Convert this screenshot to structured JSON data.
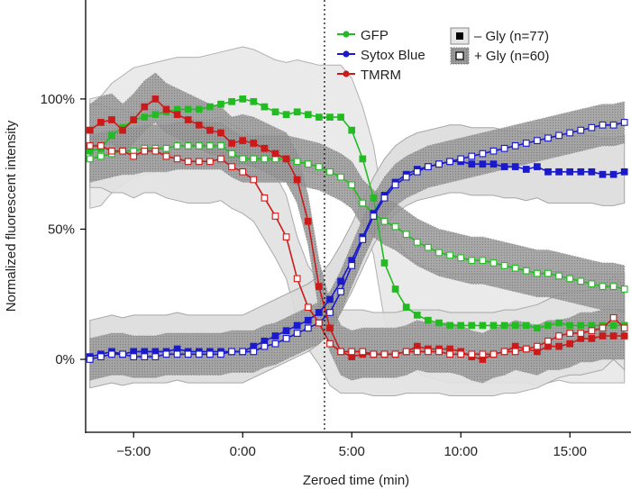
{
  "chart_data": {
    "type": "line",
    "xlabel": "Zeroed time (min)",
    "ylabel": "Normalized fluorescent intensity",
    "xlim": [
      -7.2,
      17.8
    ],
    "ylim": [
      -28,
      138
    ],
    "x_ticks": [
      -5,
      0,
      5,
      10,
      15
    ],
    "x_tick_labels": [
      "−5:00",
      "0:00",
      "5:00",
      "10:00",
      "15:00"
    ],
    "y_ticks": [
      0,
      50,
      100
    ],
    "y_tick_labels": [
      "0%",
      "50%",
      "100%"
    ],
    "event_marker_x": 3.75,
    "legend": {
      "series": [
        {
          "label": "GFP",
          "color": "#22bb22"
        },
        {
          "label": "Sytox Blue",
          "color": "#1a1acc"
        },
        {
          "label": "TMRM",
          "color": "#cc1a1a"
        }
      ],
      "conditions": [
        {
          "label": "– Gly (n=77)",
          "marker": "filled-square"
        },
        {
          "label": "+ Gly (n=60)",
          "marker": "open-square"
        }
      ]
    },
    "series": [
      {
        "name": "GFP – Gly (n=77)",
        "color": "#22bb22",
        "marker": "filled",
        "x": [
          -7,
          -6.5,
          -6,
          -5.5,
          -5,
          -4.5,
          -4,
          -3.5,
          -3,
          -2.5,
          -2,
          -1.5,
          -1,
          -0.5,
          0,
          0.5,
          1,
          1.5,
          2,
          2.5,
          3,
          3.5,
          4,
          4.5,
          5,
          5.5,
          6,
          6.5,
          7,
          7.5,
          8,
          8.5,
          9,
          9.5,
          10,
          10.5,
          11,
          11.5,
          12,
          12.5,
          13,
          13.5,
          14,
          14.5,
          15,
          15.5,
          16,
          16.5,
          17,
          17.5
        ],
        "y": [
          80,
          81,
          86,
          89,
          92,
          93,
          94,
          95,
          96,
          96,
          96,
          97,
          98,
          99,
          100,
          99,
          97,
          95,
          94,
          95,
          94,
          93,
          93,
          93,
          88,
          77,
          62,
          37,
          27,
          20,
          17,
          15,
          14,
          13,
          13,
          13,
          13,
          13,
          13,
          13,
          13,
          12,
          13,
          14,
          13,
          13,
          13,
          13,
          13,
          13
        ]
      },
      {
        "name": "GFP + Gly (n=60)",
        "color": "#22bb22",
        "marker": "open",
        "x": [
          -7,
          -6.5,
          -6,
          -5.5,
          -5,
          -4.5,
          -4,
          -3.5,
          -3,
          -2.5,
          -2,
          -1.5,
          -1,
          -0.5,
          0,
          0.5,
          1,
          1.5,
          2,
          2.5,
          3,
          3.5,
          4,
          4.5,
          5,
          5.5,
          6,
          6.5,
          7,
          7.5,
          8,
          8.5,
          9,
          9.5,
          10,
          10.5,
          11,
          11.5,
          12,
          12.5,
          13,
          13.5,
          14,
          14.5,
          15,
          15.5,
          16,
          16.5,
          17,
          17.5
        ],
        "y": [
          77,
          78,
          79,
          80,
          80,
          81,
          81,
          81,
          82,
          82,
          82,
          82,
          82,
          79,
          77,
          77,
          77,
          77,
          77,
          76,
          75,
          74,
          72,
          70,
          67,
          60,
          56,
          53,
          51,
          48,
          45,
          43,
          41,
          40,
          39,
          38,
          38,
          37,
          36,
          35,
          34,
          33,
          33,
          32,
          31,
          30,
          29,
          28,
          28,
          27
        ]
      },
      {
        "name": "Sytox Blue – Gly (n=77)",
        "color": "#1a1acc",
        "marker": "filled",
        "x": [
          -7,
          -6.5,
          -6,
          -5.5,
          -5,
          -4.5,
          -4,
          -3.5,
          -3,
          -2.5,
          -2,
          -1.5,
          -1,
          -0.5,
          0,
          0.5,
          1,
          1.5,
          2,
          2.5,
          3,
          3.5,
          4,
          4.5,
          5,
          5.5,
          6,
          6.5,
          7,
          7.5,
          8,
          8.5,
          9,
          9.5,
          10,
          10.5,
          11,
          11.5,
          12,
          12.5,
          13,
          13.5,
          14,
          14.5,
          15,
          15.5,
          16,
          16.5,
          17,
          17.5
        ],
        "y": [
          1,
          2,
          3,
          2,
          3,
          3,
          3,
          3,
          4,
          3,
          3,
          3,
          3,
          3,
          3,
          5,
          7,
          9,
          11,
          13,
          15,
          18,
          23,
          30,
          38,
          47,
          56,
          63,
          68,
          71,
          73,
          74,
          75,
          76,
          76,
          75,
          75,
          75,
          74,
          74,
          73,
          74,
          72,
          72,
          72,
          72,
          72,
          71,
          71,
          72
        ]
      },
      {
        "name": "Sytox Blue + Gly (n=60)",
        "color": "#1a1acc",
        "marker": "open",
        "x": [
          -7,
          -6.5,
          -6,
          -5.5,
          -5,
          -4.5,
          -4,
          -3.5,
          -3,
          -2.5,
          -2,
          -1.5,
          -1,
          -0.5,
          0,
          0.5,
          1,
          1.5,
          2,
          2.5,
          3,
          3.5,
          4,
          4.5,
          5,
          5.5,
          6,
          6.5,
          7,
          7.5,
          8,
          8.5,
          9,
          9.5,
          10,
          10.5,
          11,
          11.5,
          12,
          12.5,
          13,
          13.5,
          14,
          14.5,
          15,
          15.5,
          16,
          16.5,
          17,
          17.5
        ],
        "y": [
          0,
          1,
          2,
          2,
          1,
          1,
          1,
          2,
          2,
          2,
          2,
          2,
          2,
          3,
          3,
          3,
          5,
          6,
          8,
          10,
          12,
          14,
          18,
          26,
          36,
          46,
          55,
          62,
          67,
          70,
          72,
          74,
          75,
          76,
          77,
          78,
          79,
          80,
          81,
          82,
          83,
          84,
          85,
          86,
          87,
          88,
          89,
          90,
          90,
          91
        ]
      },
      {
        "name": "TMRM – Gly (n=77)",
        "color": "#cc1a1a",
        "marker": "filled",
        "x": [
          -7,
          -6.5,
          -6,
          -5.5,
          -5,
          -4.5,
          -4,
          -3.5,
          -3,
          -2.5,
          -2,
          -1.5,
          -1,
          -0.5,
          0,
          0.5,
          1,
          1.5,
          2,
          2.5,
          3,
          3.5,
          4,
          4.5,
          5,
          5.5,
          6,
          6.5,
          7,
          7.5,
          8,
          8.5,
          9,
          9.5,
          10,
          10.5,
          11,
          11.5,
          12,
          12.5,
          13,
          13.5,
          14,
          14.5,
          15,
          15.5,
          16,
          16.5,
          17,
          17.5
        ],
        "y": [
          88,
          91,
          92,
          88,
          92,
          97,
          100,
          96,
          94,
          92,
          90,
          88,
          87,
          83,
          84,
          83,
          81,
          79,
          77,
          69,
          53,
          28,
          12,
          3,
          1,
          2,
          2,
          2,
          2,
          3,
          5,
          4,
          4,
          4,
          3,
          1,
          0,
          2,
          3,
          5,
          4,
          3,
          5,
          5,
          6,
          8,
          8,
          9,
          9,
          9
        ]
      },
      {
        "name": "TMRM + Gly (n=60)",
        "color": "#cc1a1a",
        "marker": "open",
        "x": [
          -7,
          -6.5,
          -6,
          -5.5,
          -5,
          -4.5,
          -4,
          -3.5,
          -3,
          -2.5,
          -2,
          -1.5,
          -1,
          -0.5,
          0,
          0.5,
          1,
          1.5,
          2,
          2.5,
          3,
          3.5,
          4,
          4.5,
          5,
          5.5,
          6,
          6.5,
          7,
          7.5,
          8,
          8.5,
          9,
          9.5,
          10,
          10.5,
          11,
          11.5,
          12,
          12.5,
          13,
          13.5,
          14,
          14.5,
          15,
          15.5,
          16,
          16.5,
          17,
          17.5
        ],
        "y": [
          82,
          82,
          80,
          80,
          78,
          80,
          80,
          78,
          77,
          76,
          76,
          76,
          77,
          74,
          72,
          69,
          62,
          55,
          47,
          31,
          20,
          14,
          6,
          3,
          3,
          3,
          2,
          2,
          2,
          3,
          3,
          3,
          3,
          2,
          2,
          2,
          2,
          2,
          3,
          3,
          4,
          5,
          7,
          9,
          10,
          10,
          11,
          12,
          16,
          12
        ]
      }
    ]
  }
}
